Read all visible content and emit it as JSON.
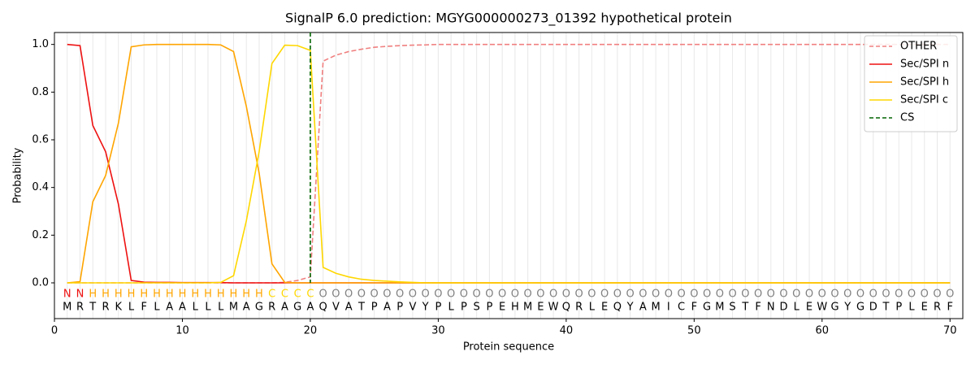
{
  "chart_data": {
    "type": "line",
    "title": "SignalP 6.0 prediction: MGYG000000273_01392 hypothetical protein",
    "xlabel": "Protein sequence",
    "ylabel": "Probability",
    "x": [
      1,
      2,
      3,
      4,
      5,
      6,
      7,
      8,
      9,
      10,
      11,
      12,
      13,
      14,
      15,
      16,
      17,
      18,
      19,
      20,
      21,
      22,
      23,
      24,
      25,
      26,
      27,
      28,
      29,
      30,
      31,
      32,
      33,
      34,
      35,
      36,
      37,
      38,
      39,
      40,
      41,
      42,
      43,
      44,
      45,
      46,
      47,
      48,
      49,
      50,
      51,
      52,
      53,
      54,
      55,
      56,
      57,
      58,
      59,
      60,
      61,
      62,
      63,
      64,
      65,
      66,
      67,
      68,
      69,
      70
    ],
    "xlim": [
      0,
      71
    ],
    "ylim": [
      -0.15,
      1.05
    ],
    "xticks": [
      0,
      10,
      20,
      30,
      40,
      50,
      60,
      70
    ],
    "yticks": [
      {
        "value": 0,
        "label": "0.0"
      },
      {
        "value": 0.2,
        "label": "0.2"
      },
      {
        "value": 0.4,
        "label": "0.4"
      },
      {
        "value": 0.6,
        "label": "0.6"
      },
      {
        "value": 0.8,
        "label": "0.8"
      },
      {
        "value": 1,
        "label": "1.0"
      }
    ],
    "legend": "upper right",
    "series": [
      {
        "name": "OTHER",
        "color": "#f08080",
        "dash": true,
        "values": [
          0,
          0,
          0,
          0,
          0,
          0,
          0,
          0,
          0,
          0,
          0,
          0,
          0,
          0,
          0,
          0,
          0,
          0.002,
          0.01,
          0.025,
          0.93,
          0.955,
          0.97,
          0.98,
          0.988,
          0.992,
          0.995,
          0.997,
          0.998,
          1,
          1,
          1,
          1,
          1,
          1,
          1,
          1,
          1,
          1,
          1,
          1,
          1,
          1,
          1,
          1,
          1,
          1,
          1,
          1,
          1,
          1,
          1,
          1,
          1,
          1,
          1,
          1,
          1,
          1,
          1,
          1,
          1,
          1,
          1,
          1,
          1,
          1,
          1,
          1,
          1
        ]
      },
      {
        "name": "Sec/SPI n",
        "color": "#ee1111",
        "dash": false,
        "values": [
          1,
          0.995,
          0.66,
          0.55,
          0.33,
          0.01,
          0.003,
          0.002,
          0.002,
          0.001,
          0.001,
          0.001,
          0.001,
          0,
          0,
          0,
          0,
          0,
          0,
          0,
          0,
          0,
          0,
          0,
          0,
          0,
          0,
          0,
          0,
          0,
          0,
          0,
          0,
          0,
          0,
          0,
          0,
          0,
          0,
          0,
          0,
          0,
          0,
          0,
          0,
          0,
          0,
          0,
          0,
          0,
          0,
          0,
          0,
          0,
          0,
          0,
          0,
          0,
          0,
          0,
          0,
          0,
          0,
          0,
          0,
          0,
          0,
          0,
          0,
          0
        ]
      },
      {
        "name": "Sec/SPI h",
        "color": "#ffa500",
        "dash": false,
        "values": [
          0,
          0.005,
          0.34,
          0.45,
          0.67,
          0.99,
          0.998,
          1,
          1,
          1,
          1,
          1,
          0.998,
          0.97,
          0.74,
          0.46,
          0.08,
          0.002,
          0,
          0,
          0,
          0,
          0,
          0,
          0,
          0,
          0,
          0,
          0,
          0,
          0,
          0,
          0,
          0,
          0,
          0,
          0,
          0,
          0,
          0,
          0,
          0,
          0,
          0,
          0,
          0,
          0,
          0,
          0,
          0,
          0,
          0,
          0,
          0,
          0,
          0,
          0,
          0,
          0,
          0,
          0,
          0,
          0,
          0,
          0,
          0,
          0,
          0,
          0,
          0
        ]
      },
      {
        "name": "Sec/SPI c",
        "color": "#ffd700",
        "dash": false,
        "values": [
          0,
          0,
          0,
          0,
          0,
          0,
          0,
          0,
          0,
          0,
          0,
          0,
          0.002,
          0.03,
          0.26,
          0.55,
          0.92,
          0.997,
          0.995,
          0.975,
          0.065,
          0.04,
          0.025,
          0.015,
          0.01,
          0.007,
          0.004,
          0.002,
          0,
          0,
          0,
          0,
          0,
          0,
          0,
          0,
          0,
          0,
          0,
          0,
          0,
          0,
          0,
          0,
          0,
          0,
          0,
          0,
          0,
          0,
          0,
          0,
          0,
          0,
          0,
          0,
          0,
          0,
          0,
          0,
          0,
          0,
          0,
          0,
          0,
          0,
          0,
          0,
          0,
          0
        ]
      }
    ],
    "cs": {
      "name": "CS",
      "color": "#006400",
      "x": 20
    },
    "labels": [
      "N",
      "N",
      "H",
      "H",
      "H",
      "H",
      "H",
      "H",
      "H",
      "H",
      "H",
      "H",
      "H",
      "H",
      "H",
      "H",
      "C",
      "C",
      "C",
      "C",
      "O",
      "O",
      "O",
      "O",
      "O",
      "O",
      "O",
      "O",
      "O",
      "O",
      "O",
      "O",
      "O",
      "O",
      "O",
      "O",
      "O",
      "O",
      "O",
      "O",
      "O",
      "O",
      "O",
      "O",
      "O",
      "O",
      "O",
      "O",
      "O",
      "O",
      "O",
      "O",
      "O",
      "O",
      "O",
      "O",
      "O",
      "O",
      "O",
      "O",
      "O",
      "O",
      "O",
      "O",
      "O",
      "O",
      "O",
      "O",
      "O",
      "O"
    ],
    "label_colors": {
      "N": "#ee1111",
      "H": "#ffa500",
      "C": "#ffd700",
      "O": "#808080"
    },
    "sequence": [
      "M",
      "R",
      "T",
      "R",
      "K",
      "L",
      "F",
      "L",
      "A",
      "A",
      "L",
      "L",
      "L",
      "M",
      "A",
      "G",
      "R",
      "A",
      "G",
      "A",
      "Q",
      "V",
      "A",
      "T",
      "P",
      "A",
      "P",
      "V",
      "Y",
      "P",
      "L",
      "P",
      "S",
      "P",
      "E",
      "H",
      "M",
      "E",
      "W",
      "Q",
      "R",
      "L",
      "E",
      "Q",
      "Y",
      "A",
      "M",
      "I",
      "C",
      "F",
      "G",
      "M",
      "S",
      "T",
      "F",
      "N",
      "D",
      "L",
      "E",
      "W",
      "G",
      "Y",
      "G",
      "D",
      "T",
      "P",
      "L",
      "E",
      "R",
      "F"
    ]
  }
}
